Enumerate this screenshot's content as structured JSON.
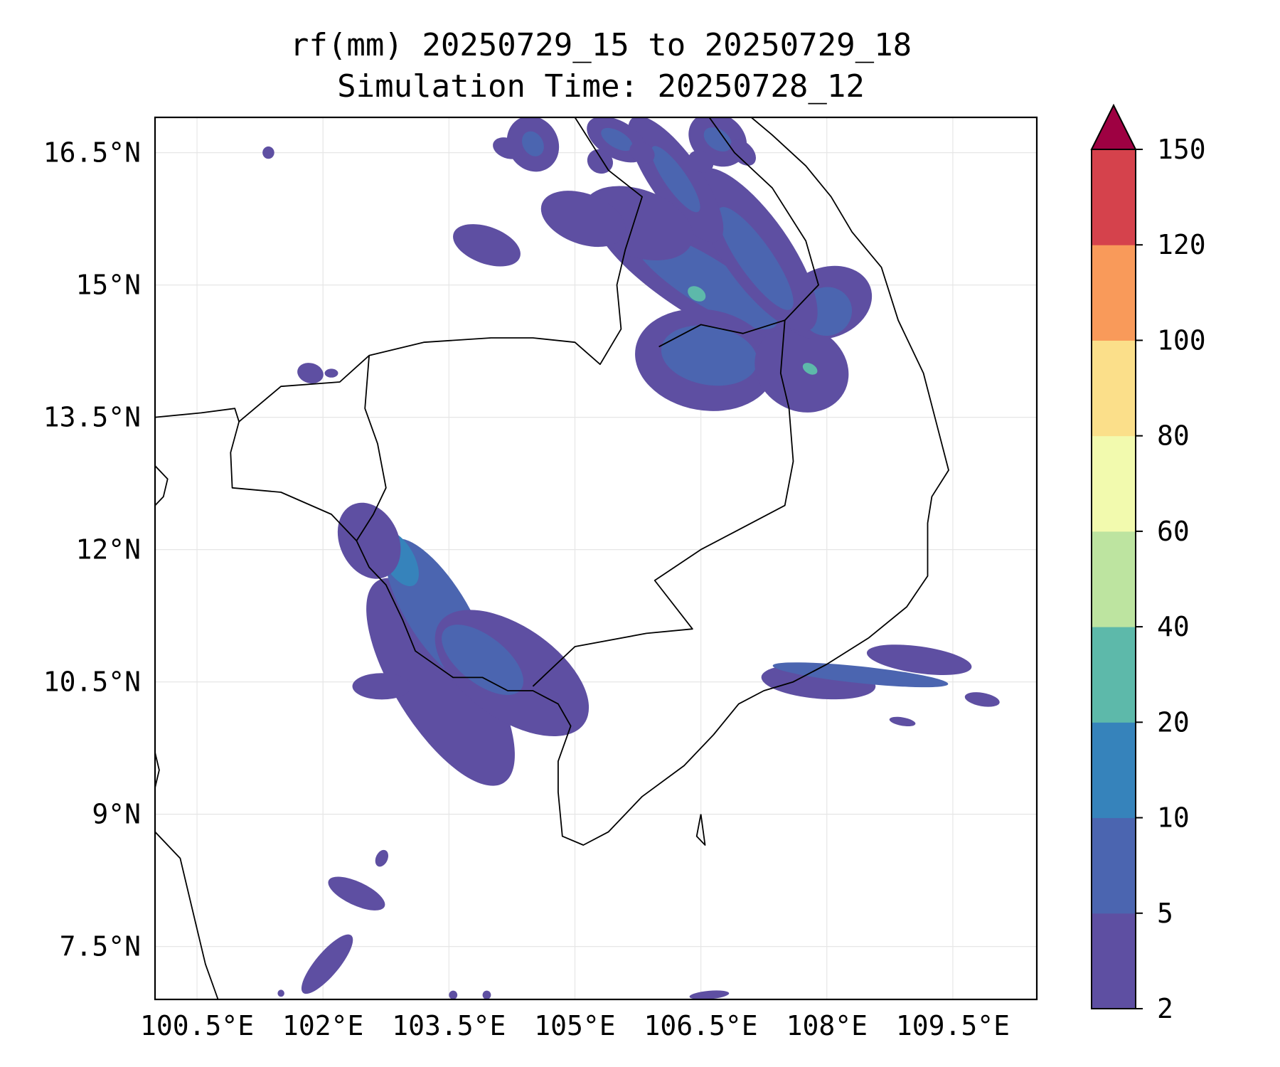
{
  "title": {
    "line1": "rf(mm) 20250729_15 to 20250729_18",
    "line2": "Simulation Time: 20250728_12"
  },
  "map": {
    "type": "contourf",
    "lon_range": [
      100.0,
      110.5
    ],
    "lat_range": [
      6.9,
      16.9
    ],
    "lon_ticks": [
      100.5,
      102,
      103.5,
      105,
      106.5,
      108,
      109.5
    ],
    "lat_ticks": [
      7.5,
      9,
      10.5,
      12,
      13.5,
      15,
      16.5
    ],
    "lon_tick_labels": [
      "100.5°E",
      "102°E",
      "103.5°E",
      "105°E",
      "106.5°E",
      "108°E",
      "109.5°E"
    ],
    "lat_tick_labels": [
      "7.5°N",
      "9°N",
      "10.5°N",
      "12°N",
      "13.5°N",
      "15°N",
      "16.5°N"
    ],
    "grid": true
  },
  "colorbar": {
    "levels": [
      2,
      5,
      10,
      20,
      40,
      60,
      80,
      100,
      120,
      150
    ],
    "labels": [
      "2",
      "5",
      "10",
      "20",
      "40",
      "60",
      "80",
      "100",
      "120",
      "150"
    ],
    "colors": [
      "#5e4fa2",
      "#4b65b0",
      "#3683bb",
      "#5db9aa",
      "#bde4a0",
      "#f2faae",
      "#fbdf8a",
      "#f99a5a",
      "#d5424c"
    ],
    "extend_color": "#9e0142",
    "extend": "max"
  },
  "rain_areas": [
    {
      "band": 0,
      "lon": 103.4,
      "lat": 10.5,
      "w": 0.55,
      "h": 2.7,
      "rot": -32
    },
    {
      "band": 1,
      "lon": 103.35,
      "lat": 11.3,
      "w": 0.36,
      "h": 1.9,
      "rot": -32
    },
    {
      "band": 2,
      "lon": 102.9,
      "lat": 11.9,
      "w": 0.18,
      "h": 0.7,
      "rot": -30
    },
    {
      "band": 0,
      "lon": 104.25,
      "lat": 10.6,
      "w": 0.55,
      "h": 2.0,
      "rot": -55
    },
    {
      "band": 1,
      "lon": 103.9,
      "lat": 10.75,
      "w": 0.28,
      "h": 1.1,
      "rot": -52
    },
    {
      "band": 0,
      "lon": 102.55,
      "lat": 12.1,
      "w": 0.35,
      "h": 0.9,
      "rot": -25
    },
    {
      "band": 0,
      "lon": 102.7,
      "lat": 10.45,
      "w": 0.35,
      "h": 0.3,
      "rot": 0
    },
    {
      "band": 0,
      "lon": 106.55,
      "lat": 15.05,
      "w": 0.45,
      "h": 2.9,
      "rot": -58
    },
    {
      "band": 1,
      "lon": 106.55,
      "lat": 15.05,
      "w": 0.28,
      "h": 1.9,
      "rot": -58
    },
    {
      "band": 3,
      "lon": 106.45,
      "lat": 14.9,
      "w": 0.08,
      "h": 0.22,
      "rot": -58
    },
    {
      "band": 0,
      "lon": 106.55,
      "lat": 14.15,
      "w": 0.6,
      "h": 1.6,
      "rot": -80
    },
    {
      "band": 1,
      "lon": 106.6,
      "lat": 14.2,
      "w": 0.35,
      "h": 1.1,
      "rot": -80
    },
    {
      "band": 0,
      "lon": 107.7,
      "lat": 14.05,
      "w": 0.5,
      "h": 1.1,
      "rot": -60
    },
    {
      "band": 3,
      "lon": 107.8,
      "lat": 14.05,
      "w": 0.06,
      "h": 0.18,
      "rot": -60
    },
    {
      "band": 0,
      "lon": 108.0,
      "lat": 14.8,
      "w": 0.55,
      "h": 0.8,
      "rot": -20
    },
    {
      "band": 1,
      "lon": 108.0,
      "lat": 14.7,
      "w": 0.3,
      "h": 0.55,
      "rot": -20
    },
    {
      "band": 0,
      "lon": 107.15,
      "lat": 15.4,
      "w": 0.4,
      "h": 2.2,
      "rot": -35
    },
    {
      "band": 1,
      "lon": 107.15,
      "lat": 15.3,
      "w": 0.2,
      "h": 1.4,
      "rot": -35
    },
    {
      "band": 0,
      "lon": 106.2,
      "lat": 16.2,
      "w": 0.3,
      "h": 1.7,
      "rot": -35
    },
    {
      "band": 1,
      "lon": 106.2,
      "lat": 16.2,
      "w": 0.13,
      "h": 0.9,
      "rot": -35
    },
    {
      "band": 0,
      "lon": 105.5,
      "lat": 16.65,
      "w": 0.22,
      "h": 0.75,
      "rot": -60
    },
    {
      "band": 1,
      "lon": 105.5,
      "lat": 16.65,
      "w": 0.1,
      "h": 0.4,
      "rot": -60
    },
    {
      "band": 0,
      "lon": 106.7,
      "lat": 16.65,
      "w": 0.3,
      "h": 0.7,
      "rot": -55
    },
    {
      "band": 1,
      "lon": 106.7,
      "lat": 16.65,
      "w": 0.12,
      "h": 0.35,
      "rot": -55
    },
    {
      "band": 0,
      "lon": 104.5,
      "lat": 16.6,
      "w": 0.3,
      "h": 0.65,
      "rot": -30
    },
    {
      "band": 1,
      "lon": 104.5,
      "lat": 16.6,
      "w": 0.12,
      "h": 0.3,
      "rot": -30
    },
    {
      "band": 0,
      "lon": 105.75,
      "lat": 15.7,
      "w": 0.4,
      "h": 1.3,
      "rot": -70
    },
    {
      "band": 0,
      "lon": 105.1,
      "lat": 15.75,
      "w": 0.3,
      "h": 1.0,
      "rot": -70
    },
    {
      "band": 0,
      "lon": 103.95,
      "lat": 15.45,
      "w": 0.22,
      "h": 0.8,
      "rot": -70
    },
    {
      "band": 0,
      "lon": 104.2,
      "lat": 16.55,
      "w": 0.12,
      "h": 0.35,
      "rot": -70
    },
    {
      "band": 0,
      "lon": 105.3,
      "lat": 16.4,
      "w": 0.14,
      "h": 0.3,
      "rot": -60
    },
    {
      "band": 0,
      "lon": 105.8,
      "lat": 16.5,
      "w": 0.12,
      "h": 0.3,
      "rot": -60
    },
    {
      "band": 0,
      "lon": 106.5,
      "lat": 16.4,
      "w": 0.12,
      "h": 0.3,
      "rot": -60
    },
    {
      "band": 0,
      "lon": 107.0,
      "lat": 16.5,
      "w": 0.12,
      "h": 0.35,
      "rot": -45
    },
    {
      "band": 0,
      "lon": 101.85,
      "lat": 14.0,
      "w": 0.12,
      "h": 0.3,
      "rot": -75
    },
    {
      "band": 0,
      "lon": 102.1,
      "lat": 14.0,
      "w": 0.08,
      "h": 0.1,
      "rot": 0
    },
    {
      "band": 0,
      "lon": 101.35,
      "lat": 16.5,
      "w": 0.07,
      "h": 0.14,
      "rot": 0
    },
    {
      "band": 0,
      "lon": 107.9,
      "lat": 10.5,
      "w": 0.2,
      "h": 1.3,
      "rot": -85
    },
    {
      "band": 0,
      "lon": 109.1,
      "lat": 10.75,
      "w": 0.16,
      "h": 1.2,
      "rot": -82
    },
    {
      "band": 1,
      "lon": 108.4,
      "lat": 10.58,
      "w": 0.1,
      "h": 2.0,
      "rot": -84
    },
    {
      "band": 0,
      "lon": 108.9,
      "lat": 10.05,
      "w": 0.05,
      "h": 0.3,
      "rot": -80
    },
    {
      "band": 0,
      "lon": 109.85,
      "lat": 10.3,
      "w": 0.08,
      "h": 0.4,
      "rot": -80
    },
    {
      "band": 0,
      "lon": 102.4,
      "lat": 8.1,
      "w": 0.14,
      "h": 0.7,
      "rot": -65
    },
    {
      "band": 0,
      "lon": 102.05,
      "lat": 7.3,
      "w": 0.14,
      "h": 0.85,
      "rot": 40
    },
    {
      "band": 0,
      "lon": 102.7,
      "lat": 8.5,
      "w": 0.07,
      "h": 0.2,
      "rot": 25
    },
    {
      "band": 0,
      "lon": 103.55,
      "lat": 6.95,
      "w": 0.05,
      "h": 0.1,
      "rot": 0
    },
    {
      "band": 0,
      "lon": 103.95,
      "lat": 6.95,
      "w": 0.05,
      "h": 0.1,
      "rot": 0
    },
    {
      "band": 0,
      "lon": 106.6,
      "lat": 6.95,
      "w": 0.05,
      "h": 0.45,
      "rot": 85
    },
    {
      "band": 0,
      "lon": 101.5,
      "lat": 6.97,
      "w": 0.04,
      "h": 0.08,
      "rot": 0
    }
  ],
  "coastlines": [
    [
      [
        100.0,
        13.5
      ],
      [
        100.55,
        13.55
      ],
      [
        100.95,
        13.6
      ],
      [
        101.0,
        13.45
      ],
      [
        100.9,
        13.1
      ],
      [
        100.92,
        12.7
      ],
      [
        101.5,
        12.65
      ],
      [
        102.1,
        12.4
      ],
      [
        102.4,
        12.1
      ],
      [
        102.55,
        11.8
      ],
      [
        102.75,
        11.6
      ],
      [
        102.95,
        11.2
      ],
      [
        103.1,
        10.85
      ],
      [
        103.55,
        10.55
      ],
      [
        103.9,
        10.55
      ],
      [
        104.2,
        10.4
      ],
      [
        104.5,
        10.4
      ],
      [
        104.8,
        10.25
      ],
      [
        104.95,
        10.0
      ],
      [
        104.8,
        9.6
      ],
      [
        104.8,
        9.25
      ],
      [
        104.85,
        8.75
      ],
      [
        105.1,
        8.65
      ],
      [
        105.4,
        8.8
      ],
      [
        105.8,
        9.2
      ],
      [
        106.3,
        9.55
      ],
      [
        106.65,
        9.9
      ],
      [
        106.95,
        10.25
      ],
      [
        107.25,
        10.4
      ],
      [
        107.6,
        10.5
      ],
      [
        108.0,
        10.7
      ],
      [
        108.5,
        11.0
      ],
      [
        108.95,
        11.35
      ],
      [
        109.2,
        11.7
      ],
      [
        109.2,
        12.3
      ],
      [
        109.25,
        12.6
      ],
      [
        109.45,
        12.9
      ],
      [
        109.3,
        13.45
      ],
      [
        109.15,
        14.0
      ],
      [
        108.85,
        14.6
      ],
      [
        108.65,
        15.2
      ],
      [
        108.3,
        15.6
      ],
      [
        108.05,
        16.0
      ],
      [
        107.75,
        16.35
      ],
      [
        107.35,
        16.7
      ],
      [
        107.1,
        16.9
      ]
    ],
    [
      [
        100.0,
        8.8
      ],
      [
        100.3,
        8.5
      ],
      [
        100.45,
        7.9
      ],
      [
        100.6,
        7.3
      ],
      [
        100.75,
        6.9
      ]
    ],
    [
      [
        100.0,
        12.95
      ],
      [
        100.15,
        12.8
      ],
      [
        100.1,
        12.6
      ],
      [
        100.0,
        12.5
      ]
    ],
    [
      [
        100.0,
        9.7
      ],
      [
        100.05,
        9.5
      ],
      [
        100.0,
        9.3
      ]
    ],
    [
      [
        106.5,
        9.0
      ],
      [
        106.55,
        8.65
      ],
      [
        106.45,
        8.75
      ],
      [
        106.5,
        9.0
      ]
    ]
  ],
  "borders": [
    [
      [
        101.0,
        13.45
      ],
      [
        101.5,
        13.85
      ],
      [
        102.2,
        13.9
      ],
      [
        102.55,
        14.2
      ],
      [
        103.2,
        14.35
      ],
      [
        104.0,
        14.4
      ],
      [
        104.5,
        14.4
      ],
      [
        105.0,
        14.35
      ],
      [
        105.3,
        14.1
      ],
      [
        105.55,
        14.5
      ],
      [
        105.5,
        15.0
      ],
      [
        105.6,
        15.4
      ],
      [
        105.8,
        16.0
      ],
      [
        105.4,
        16.3
      ],
      [
        105.0,
        16.9
      ]
    ],
    [
      [
        106.0,
        14.3
      ],
      [
        106.5,
        14.55
      ],
      [
        107.0,
        14.45
      ],
      [
        107.5,
        14.6
      ],
      [
        107.45,
        14.0
      ],
      [
        107.55,
        13.6
      ],
      [
        107.6,
        13.0
      ],
      [
        107.5,
        12.5
      ],
      [
        106.9,
        12.2
      ],
      [
        106.5,
        12.0
      ],
      [
        105.95,
        11.65
      ],
      [
        106.4,
        11.1
      ],
      [
        105.85,
        11.05
      ],
      [
        105.0,
        10.9
      ],
      [
        104.5,
        10.45
      ]
    ],
    [
      [
        107.5,
        14.6
      ],
      [
        107.9,
        15.0
      ],
      [
        107.75,
        15.5
      ],
      [
        107.35,
        16.1
      ],
      [
        106.9,
        16.5
      ],
      [
        106.6,
        16.9
      ]
    ],
    [
      [
        102.4,
        12.1
      ],
      [
        102.6,
        12.4
      ],
      [
        102.75,
        12.7
      ],
      [
        102.65,
        13.2
      ],
      [
        102.5,
        13.6
      ],
      [
        102.55,
        14.2
      ]
    ]
  ]
}
